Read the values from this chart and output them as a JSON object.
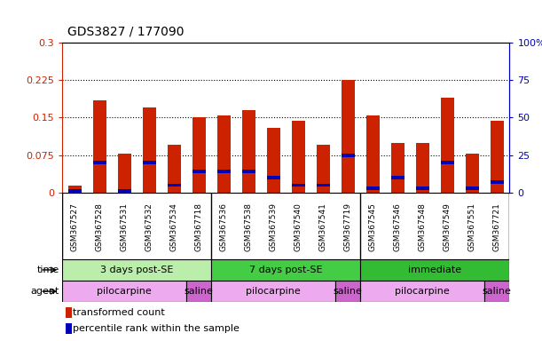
{
  "title": "GDS3827 / 177090",
  "samples": [
    "GSM367527",
    "GSM367528",
    "GSM367531",
    "GSM367532",
    "GSM367534",
    "GSM367718",
    "GSM367536",
    "GSM367538",
    "GSM367539",
    "GSM367540",
    "GSM367541",
    "GSM367719",
    "GSM367545",
    "GSM367546",
    "GSM367548",
    "GSM367549",
    "GSM367551",
    "GSM367721"
  ],
  "red_values": [
    0.015,
    0.185,
    0.078,
    0.17,
    0.095,
    0.15,
    0.155,
    0.165,
    0.13,
    0.143,
    0.095,
    0.226,
    0.155,
    0.1,
    0.1,
    0.19,
    0.078,
    0.143
  ],
  "blue_values": [
    0.003,
    0.06,
    0.003,
    0.06,
    0.015,
    0.043,
    0.043,
    0.043,
    0.03,
    0.015,
    0.015,
    0.075,
    0.009,
    0.03,
    0.009,
    0.06,
    0.009,
    0.021
  ],
  "ylim_left": [
    0,
    0.3
  ],
  "ylim_right": [
    0,
    100
  ],
  "yticks_left": [
    0,
    0.075,
    0.15,
    0.225,
    0.3
  ],
  "ytick_labels_left": [
    "0",
    "0.075",
    "0.15",
    "0.225",
    "0.3"
  ],
  "yticks_right": [
    0,
    25,
    50,
    75,
    100
  ],
  "ytick_labels_right": [
    "0",
    "25",
    "50",
    "75",
    "100%"
  ],
  "grid_lines": [
    0.075,
    0.15,
    0.225
  ],
  "bar_color_red": "#cc2200",
  "bar_color_blue": "#0000bb",
  "time_groups": [
    {
      "label": "3 days post-SE",
      "start": 0,
      "end": 6,
      "color": "#bbeeaa"
    },
    {
      "label": "7 days post-SE",
      "start": 6,
      "end": 12,
      "color": "#44cc44"
    },
    {
      "label": "immediate",
      "start": 12,
      "end": 18,
      "color": "#33bb33"
    }
  ],
  "agent_groups": [
    {
      "label": "pilocarpine",
      "start": 0,
      "end": 5,
      "color": "#eeaaee"
    },
    {
      "label": "saline",
      "start": 5,
      "end": 6,
      "color": "#cc66cc"
    },
    {
      "label": "pilocarpine",
      "start": 6,
      "end": 11,
      "color": "#eeaaee"
    },
    {
      "label": "saline",
      "start": 11,
      "end": 12,
      "color": "#cc66cc"
    },
    {
      "label": "pilocarpine",
      "start": 12,
      "end": 17,
      "color": "#eeaaee"
    },
    {
      "label": "saline",
      "start": 17,
      "end": 18,
      "color": "#cc66cc"
    }
  ],
  "legend_red": "transformed count",
  "legend_blue": "percentile rank within the sample",
  "time_label": "time",
  "agent_label": "agent",
  "bar_width": 0.55,
  "bg_color": "#ffffff",
  "plot_bg": "#ffffff",
  "tick_color_left": "#cc2200",
  "tick_color_right": "#0000bb",
  "sample_row_bg": "#d8d8d8",
  "blue_bar_height": 0.007
}
